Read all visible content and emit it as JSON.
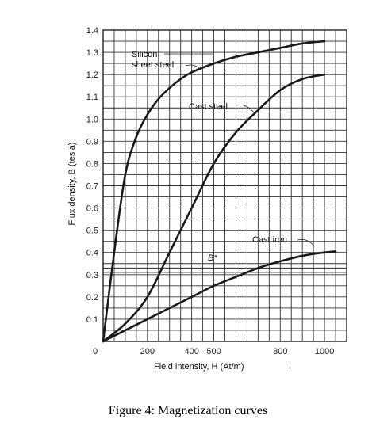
{
  "chart_data": {
    "type": "line",
    "title": "",
    "xlabel": "Field intensity, H (At/m)",
    "ylabel": "Flux density, B (tesla)",
    "xlim": [
      0,
      1100
    ],
    "ylim": [
      0,
      1.4
    ],
    "x_ticks": [
      0,
      200,
      400,
      500,
      800,
      1000
    ],
    "y_ticks": [
      0.1,
      0.2,
      0.3,
      0.4,
      0.5,
      0.6,
      0.7,
      0.8,
      0.9,
      1.0,
      1.1,
      1.2,
      1.3,
      1.4
    ],
    "y_tick_labels": [
      "0.1",
      "0.2",
      "0.3",
      "0.4",
      "0.5",
      "0.6",
      "0.7",
      "0.8",
      "0.9",
      "1.0",
      "1.1",
      "1.2",
      "1.3",
      "1.4"
    ],
    "grid": true,
    "series": [
      {
        "name": "Silicon sheet steel",
        "x": [
          0,
          50,
          100,
          150,
          200,
          250,
          300,
          350,
          400,
          500,
          600,
          700,
          800,
          900,
          1000
        ],
        "y": [
          0.0,
          0.4,
          0.75,
          0.92,
          1.02,
          1.09,
          1.14,
          1.18,
          1.21,
          1.25,
          1.28,
          1.3,
          1.32,
          1.34,
          1.35
        ]
      },
      {
        "name": "Cast steel",
        "x": [
          0,
          100,
          200,
          300,
          400,
          500,
          600,
          700,
          800,
          900,
          1000
        ],
        "y": [
          0.0,
          0.08,
          0.2,
          0.4,
          0.6,
          0.8,
          0.94,
          1.04,
          1.13,
          1.18,
          1.2
        ]
      },
      {
        "name": "Cast iron",
        "x": [
          0,
          100,
          200,
          300,
          400,
          500,
          600,
          700,
          800,
          900,
          1000,
          1050
        ],
        "y": [
          0.0,
          0.05,
          0.1,
          0.15,
          0.2,
          0.25,
          0.29,
          0.33,
          0.36,
          0.385,
          0.4,
          0.405
        ]
      }
    ],
    "series_labels": [
      "Silicon",
      "sheet steel",
      "Cast steel",
      "Cast iron"
    ],
    "annotations": [
      {
        "text": "B*",
        "x": 480,
        "y": 0.345
      }
    ],
    "reference_lines": [
      {
        "y": 0.33,
        "x_from": 0,
        "x_to": 1100
      },
      {
        "y": 0.31,
        "x_from": 0,
        "x_to": 1100
      }
    ],
    "x_arrow": "→"
  },
  "caption": "Figure 4: Magnetization curves"
}
